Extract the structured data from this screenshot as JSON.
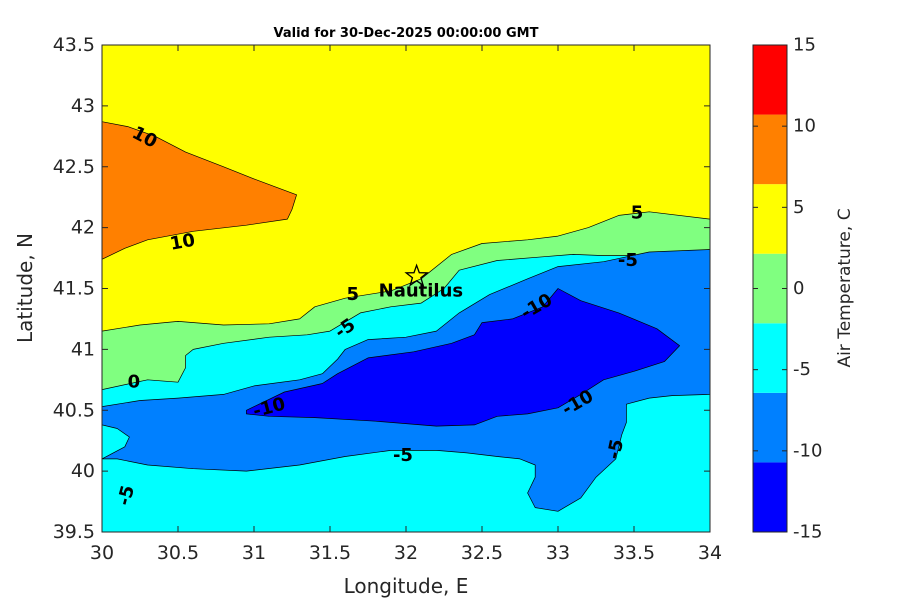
{
  "chart_data": {
    "type": "contour",
    "title": "Valid for 30-Dec-2025 00:00:00 GMT",
    "xlabel": "Longitude, E",
    "ylabel": "Latitude, N",
    "xlim": [
      30,
      34
    ],
    "ylim": [
      39.5,
      43.5
    ],
    "x_ticks": [
      "30",
      "30.5",
      "31",
      "31.5",
      "32",
      "32.5",
      "33",
      "33.5",
      "34"
    ],
    "y_ticks": [
      "39.5",
      "40",
      "40.5",
      "41",
      "41.5",
      "42",
      "42.5",
      "43",
      "43.5"
    ],
    "colorbar": {
      "label": "Air Temperature, C",
      "levels": [
        -15,
        -10,
        -5,
        0,
        5,
        10,
        15
      ],
      "tick_labels": [
        "-15",
        "-10",
        "-5",
        "0",
        "5",
        "10",
        "15"
      ],
      "colors": [
        "#0000ff",
        "#0080ff",
        "#00ffff",
        "#80ff80",
        "#ffff00",
        "#ff8000",
        "#ff0000"
      ]
    },
    "regions": [
      {
        "name": "band-2.5-7.5",
        "color": "#ffff00",
        "points": [
          [
            30,
            39.5
          ],
          [
            34,
            39.5
          ],
          [
            34,
            43.5
          ],
          [
            30,
            43.5
          ]
        ]
      },
      {
        "name": "band-7.5-12.5",
        "color": "#ff8000",
        "points": [
          [
            30,
            42.87
          ],
          [
            30.17,
            42.83
          ],
          [
            30.35,
            42.75
          ],
          [
            30.55,
            42.62
          ],
          [
            30.8,
            42.5
          ],
          [
            31.0,
            42.4
          ],
          [
            31.15,
            42.33
          ],
          [
            31.28,
            42.27
          ],
          [
            31.25,
            42.15
          ],
          [
            31.22,
            42.07
          ],
          [
            30.95,
            42.02
          ],
          [
            30.6,
            41.97
          ],
          [
            30.3,
            41.9
          ],
          [
            30.15,
            41.83
          ],
          [
            30,
            41.74
          ]
        ]
      },
      {
        "name": "band-neg2.5-2.5",
        "color": "#80ff80",
        "points": [
          [
            30,
            41.15
          ],
          [
            30.25,
            41.2
          ],
          [
            30.5,
            41.23
          ],
          [
            30.8,
            41.2
          ],
          [
            31.1,
            41.21
          ],
          [
            31.3,
            41.25
          ],
          [
            31.4,
            41.35
          ],
          [
            31.6,
            41.42
          ],
          [
            31.9,
            41.48
          ],
          [
            32.1,
            41.58
          ],
          [
            32.3,
            41.78
          ],
          [
            32.5,
            41.87
          ],
          [
            32.8,
            41.9
          ],
          [
            33.0,
            41.93
          ],
          [
            33.2,
            42.0
          ],
          [
            33.4,
            42.1
          ],
          [
            33.6,
            42.13
          ],
          [
            34,
            42.07
          ],
          [
            34,
            39.5
          ],
          [
            30,
            39.5
          ]
        ]
      },
      {
        "name": "band-neg7.5-neg2.5",
        "color": "#00ffff",
        "points": [
          [
            30,
            40.67
          ],
          [
            30.3,
            40.75
          ],
          [
            30.5,
            40.73
          ],
          [
            30.55,
            40.85
          ],
          [
            30.55,
            40.95
          ],
          [
            30.6,
            41.0
          ],
          [
            30.8,
            41.05
          ],
          [
            31.1,
            41.1
          ],
          [
            31.35,
            41.12
          ],
          [
            31.5,
            41.15
          ],
          [
            31.7,
            41.3
          ],
          [
            31.9,
            41.35
          ],
          [
            32.1,
            41.38
          ],
          [
            32.25,
            41.5
          ],
          [
            32.35,
            41.65
          ],
          [
            32.6,
            41.73
          ],
          [
            32.9,
            41.76
          ],
          [
            33.1,
            41.78
          ],
          [
            33.3,
            41.77
          ],
          [
            33.6,
            41.77
          ],
          [
            34,
            41.78
          ],
          [
            34,
            39.5
          ],
          [
            30,
            39.5
          ]
        ]
      },
      {
        "name": "band-neg12.5-neg7.5",
        "color": "#0080ff",
        "points": [
          [
            30,
            40.53
          ],
          [
            30.25,
            40.58
          ],
          [
            30.5,
            40.6
          ],
          [
            30.8,
            40.63
          ],
          [
            31.0,
            40.7
          ],
          [
            31.3,
            40.75
          ],
          [
            31.45,
            40.8
          ],
          [
            31.55,
            40.92
          ],
          [
            31.6,
            41.0
          ],
          [
            31.75,
            41.08
          ],
          [
            32.0,
            41.1
          ],
          [
            32.2,
            41.15
          ],
          [
            32.35,
            41.3
          ],
          [
            32.55,
            41.45
          ],
          [
            32.8,
            41.58
          ],
          [
            33.0,
            41.68
          ],
          [
            33.3,
            41.72
          ],
          [
            33.6,
            41.8
          ],
          [
            34,
            41.82
          ],
          [
            34,
            40.63
          ],
          [
            33.75,
            40.62
          ],
          [
            33.6,
            40.6
          ],
          [
            33.45,
            40.55
          ],
          [
            33.45,
            40.4
          ],
          [
            33.42,
            40.3
          ],
          [
            33.38,
            40.1
          ],
          [
            33.25,
            39.95
          ],
          [
            33.15,
            39.78
          ],
          [
            33.0,
            39.67
          ],
          [
            32.85,
            39.7
          ],
          [
            32.8,
            39.82
          ],
          [
            32.85,
            39.95
          ],
          [
            32.85,
            40.05
          ],
          [
            32.75,
            40.1
          ],
          [
            32.6,
            40.12
          ],
          [
            32.4,
            40.15
          ],
          [
            32.2,
            40.17
          ],
          [
            31.9,
            40.17
          ],
          [
            31.6,
            40.12
          ],
          [
            31.3,
            40.05
          ],
          [
            30.95,
            40.0
          ],
          [
            30.6,
            40.02
          ],
          [
            30.3,
            40.05
          ],
          [
            30.1,
            40.1
          ],
          [
            30.0,
            40.1
          ],
          [
            30.15,
            40.2
          ],
          [
            30.18,
            40.28
          ],
          [
            30.1,
            40.35
          ],
          [
            30.0,
            40.38
          ]
        ]
      },
      {
        "name": "band-neg17.5-neg12.5",
        "color": "#0000ff",
        "points": [
          [
            30.95,
            40.5
          ],
          [
            31.2,
            40.65
          ],
          [
            31.45,
            40.72
          ],
          [
            31.55,
            40.8
          ],
          [
            31.75,
            40.93
          ],
          [
            32.05,
            40.98
          ],
          [
            32.3,
            41.05
          ],
          [
            32.45,
            41.12
          ],
          [
            32.5,
            41.22
          ],
          [
            32.7,
            41.25
          ],
          [
            32.9,
            41.35
          ],
          [
            33.0,
            41.5
          ],
          [
            33.15,
            41.4
          ],
          [
            33.4,
            41.3
          ],
          [
            33.65,
            41.17
          ],
          [
            33.8,
            41.03
          ],
          [
            33.7,
            40.9
          ],
          [
            33.5,
            40.82
          ],
          [
            33.3,
            40.75
          ],
          [
            33.15,
            40.63
          ],
          [
            33.0,
            40.52
          ],
          [
            32.8,
            40.47
          ],
          [
            32.6,
            40.45
          ],
          [
            32.45,
            40.38
          ],
          [
            32.2,
            40.37
          ],
          [
            31.8,
            40.41
          ],
          [
            31.4,
            40.44
          ],
          [
            31.1,
            40.45
          ],
          [
            30.95,
            40.47
          ]
        ]
      }
    ],
    "contour_labels": [
      {
        "text": "10",
        "lon": 30.28,
        "lat": 42.74,
        "angle": 28
      },
      {
        "text": "10",
        "lon": 30.53,
        "lat": 41.88,
        "angle": -10
      },
      {
        "text": "5",
        "lon": 31.65,
        "lat": 41.45,
        "angle": 0
      },
      {
        "text": "5",
        "lon": 33.52,
        "lat": 42.12,
        "angle": 0
      },
      {
        "text": "0",
        "lon": 30.21,
        "lat": 40.73,
        "angle": 0
      },
      {
        "text": "-5",
        "lon": 31.6,
        "lat": 41.17,
        "angle": -35
      },
      {
        "text": "-5",
        "lon": 33.46,
        "lat": 41.73,
        "angle": 0
      },
      {
        "text": "-5",
        "lon": 30.16,
        "lat": 39.8,
        "angle": -75
      },
      {
        "text": "-5",
        "lon": 31.98,
        "lat": 40.13,
        "angle": 0
      },
      {
        "text": "-5",
        "lon": 33.38,
        "lat": 40.18,
        "angle": -78
      },
      {
        "text": "-10",
        "lon": 32.86,
        "lat": 41.35,
        "angle": -30
      },
      {
        "text": "-10",
        "lon": 31.1,
        "lat": 40.52,
        "angle": -15
      },
      {
        "text": "-10",
        "lon": 33.13,
        "lat": 40.56,
        "angle": -30
      }
    ],
    "station": {
      "name": "Nautilus",
      "lon": 32.07,
      "lat": 41.6
    }
  }
}
